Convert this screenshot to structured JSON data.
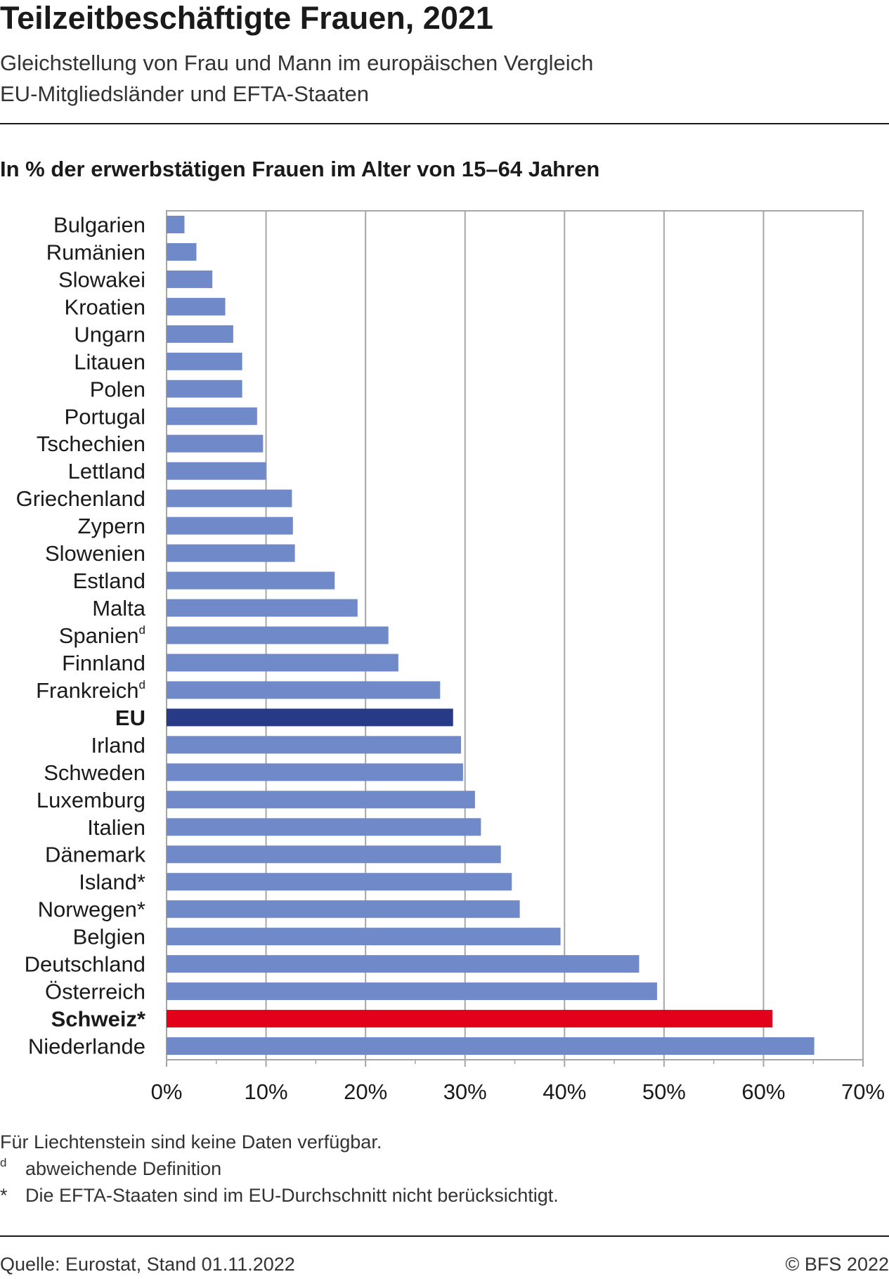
{
  "title": "Teilzeitbeschäftigte Frauen, 2021",
  "subtitle_line1": "Gleichstellung von Frau und Mann im europäischen Vergleich",
  "subtitle_line2": "EU-Mitgliedsländer und EFTA-Staaten",
  "unit_label": "In % der erwerbstätigen Frauen im Alter von  15–64 Jahren",
  "colors": {
    "default": "#7089c8",
    "eu": "#263a86",
    "switzerland": "#e2001a",
    "grid": "#a6a6a6"
  },
  "chart_data": {
    "type": "bar",
    "orientation": "horizontal",
    "categories": [
      {
        "label": "Bulgarien",
        "sup": "",
        "bold": false,
        "highlight": "default"
      },
      {
        "label": "Rumänien",
        "sup": "",
        "bold": false,
        "highlight": "default"
      },
      {
        "label": "Slowakei",
        "sup": "",
        "bold": false,
        "highlight": "default"
      },
      {
        "label": "Kroatien",
        "sup": "",
        "bold": false,
        "highlight": "default"
      },
      {
        "label": "Ungarn",
        "sup": "",
        "bold": false,
        "highlight": "default"
      },
      {
        "label": "Litauen",
        "sup": "",
        "bold": false,
        "highlight": "default"
      },
      {
        "label": "Polen",
        "sup": "",
        "bold": false,
        "highlight": "default"
      },
      {
        "label": "Portugal",
        "sup": "",
        "bold": false,
        "highlight": "default"
      },
      {
        "label": "Tschechien",
        "sup": "",
        "bold": false,
        "highlight": "default"
      },
      {
        "label": "Lettland",
        "sup": "",
        "bold": false,
        "highlight": "default"
      },
      {
        "label": "Griechenland",
        "sup": "",
        "bold": false,
        "highlight": "default"
      },
      {
        "label": "Zypern",
        "sup": "",
        "bold": false,
        "highlight": "default"
      },
      {
        "label": "Slowenien",
        "sup": "",
        "bold": false,
        "highlight": "default"
      },
      {
        "label": "Estland",
        "sup": "",
        "bold": false,
        "highlight": "default"
      },
      {
        "label": "Malta",
        "sup": "",
        "bold": false,
        "highlight": "default"
      },
      {
        "label": "Spanien",
        "sup": "d",
        "bold": false,
        "highlight": "default"
      },
      {
        "label": "Finnland",
        "sup": "",
        "bold": false,
        "highlight": "default"
      },
      {
        "label": "Frankreich",
        "sup": "d",
        "bold": false,
        "highlight": "default"
      },
      {
        "label": "EU",
        "sup": "",
        "bold": true,
        "highlight": "eu"
      },
      {
        "label": "Irland",
        "sup": "",
        "bold": false,
        "highlight": "default"
      },
      {
        "label": "Schweden",
        "sup": "",
        "bold": false,
        "highlight": "default"
      },
      {
        "label": "Luxemburg",
        "sup": "",
        "bold": false,
        "highlight": "default"
      },
      {
        "label": "Italien",
        "sup": "",
        "bold": false,
        "highlight": "default"
      },
      {
        "label": "Dänemark",
        "sup": "",
        "bold": false,
        "highlight": "default"
      },
      {
        "label": "Island*",
        "sup": "",
        "bold": false,
        "highlight": "default"
      },
      {
        "label": "Norwegen*",
        "sup": "",
        "bold": false,
        "highlight": "default"
      },
      {
        "label": "Belgien",
        "sup": "",
        "bold": false,
        "highlight": "default"
      },
      {
        "label": "Deutschland",
        "sup": "",
        "bold": false,
        "highlight": "default"
      },
      {
        "label": "Österreich",
        "sup": "",
        "bold": false,
        "highlight": "default"
      },
      {
        "label": "Schweiz*",
        "sup": "",
        "bold": true,
        "highlight": "switzerland"
      },
      {
        "label": "Niederlande",
        "sup": "",
        "bold": false,
        "highlight": "default"
      }
    ],
    "values": [
      1.8,
      3.0,
      4.6,
      5.9,
      6.7,
      7.6,
      7.6,
      9.1,
      9.7,
      10.0,
      12.6,
      12.7,
      12.9,
      16.9,
      19.2,
      22.3,
      23.3,
      27.5,
      28.8,
      29.6,
      29.8,
      31.0,
      31.6,
      33.6,
      34.7,
      35.5,
      39.6,
      47.5,
      49.3,
      60.9,
      65.1
    ],
    "xlim": [
      0,
      70
    ],
    "xticks": [
      0,
      10,
      20,
      30,
      40,
      50,
      60,
      70
    ],
    "tick_suffix": "%",
    "grid": true
  },
  "notes": [
    {
      "mark": "",
      "text": "Für Liechtenstein sind keine Daten verfügbar."
    },
    {
      "mark": "d",
      "text": "abweichende Definition"
    },
    {
      "mark": "*",
      "text": "Die EFTA-Staaten sind im EU-Durchschnitt nicht berücksichtigt."
    }
  ],
  "source": "Quelle: Eurostat, Stand 01.11.2022",
  "copyright": "© BFS 2022"
}
